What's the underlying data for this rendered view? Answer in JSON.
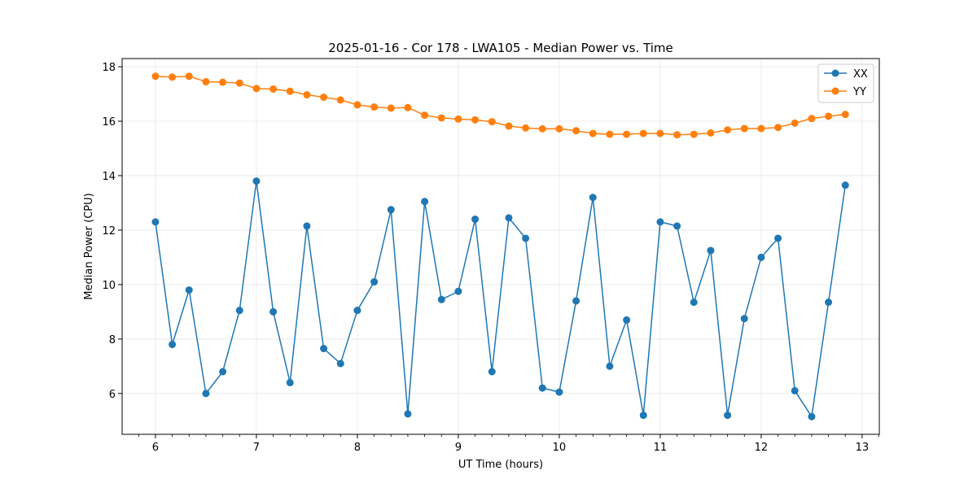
{
  "chart_data": {
    "type": "line",
    "title": "2025-01-16 - Cor 178 - LWA105 - Median Power vs. Time",
    "xlabel": "UT Time (hours)",
    "ylabel": "Median Power (CPU)",
    "xlim": [
      5.67,
      13.17
    ],
    "ylim": [
      4.5,
      18.3
    ],
    "grid": true,
    "legend_position": "top-right",
    "xticks": [
      6,
      7,
      8,
      9,
      10,
      11,
      12,
      13
    ],
    "xtick_labels": [
      "6",
      "7",
      "8",
      "9",
      "10",
      "11",
      "12",
      "13"
    ],
    "yticks": [
      6,
      8,
      10,
      12,
      14,
      16,
      18
    ],
    "ytick_labels": [
      "6",
      "8",
      "10",
      "12",
      "14",
      "16",
      "18"
    ],
    "x": [
      6.0,
      6.1667,
      6.3333,
      6.5,
      6.6667,
      6.8333,
      7.0,
      7.1667,
      7.3333,
      7.5,
      7.6667,
      7.8333,
      8.0,
      8.1667,
      8.3333,
      8.5,
      8.6667,
      8.8333,
      9.0,
      9.1667,
      9.3333,
      9.5,
      9.6667,
      9.8333,
      10.0,
      10.1667,
      10.3333,
      10.5,
      10.6667,
      10.8333,
      11.0,
      11.1667,
      11.3333,
      11.5,
      11.6667,
      11.8333,
      12.0,
      12.1667,
      12.3333,
      12.5,
      12.6667,
      12.8333
    ],
    "series": [
      {
        "name": "XX",
        "color": "#1f77b4",
        "values": [
          12.3,
          7.8,
          9.8,
          6.0,
          6.8,
          9.05,
          13.8,
          9.0,
          6.4,
          12.15,
          7.65,
          7.1,
          9.05,
          10.1,
          12.75,
          5.25,
          13.05,
          9.45,
          9.75,
          12.4,
          6.8,
          12.45,
          11.7,
          6.2,
          6.05,
          9.4,
          13.2,
          7.0,
          8.7,
          5.2,
          12.3,
          12.15,
          9.35,
          11.25,
          5.2,
          8.75,
          11.0,
          11.7,
          6.1,
          5.15,
          9.35,
          13.65
        ]
      },
      {
        "name": "YY",
        "color": "#ff7f0e",
        "values": [
          17.65,
          17.62,
          17.65,
          17.45,
          17.43,
          17.4,
          17.2,
          17.18,
          17.1,
          16.97,
          16.88,
          16.78,
          16.6,
          16.52,
          16.48,
          16.5,
          16.22,
          16.12,
          16.08,
          16.05,
          15.98,
          15.82,
          15.75,
          15.72,
          15.72,
          15.65,
          15.55,
          15.52,
          15.52,
          15.55,
          15.55,
          15.5,
          15.52,
          15.57,
          15.68,
          15.73,
          15.73,
          15.77,
          15.93,
          16.1,
          16.18,
          16.25
        ]
      }
    ]
  }
}
